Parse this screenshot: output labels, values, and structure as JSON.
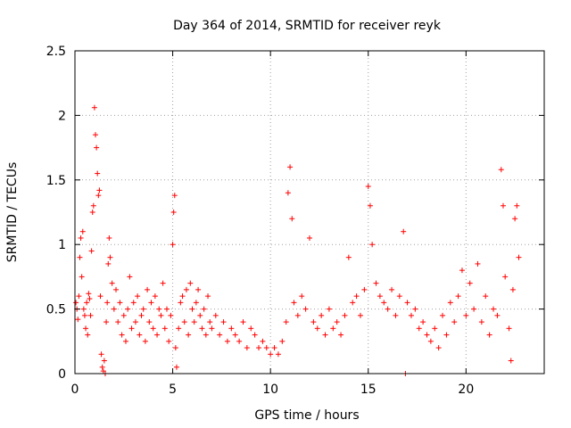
{
  "chart_data": {
    "type": "scatter",
    "title": "Day 364 of 2014, SRMTID for receiver reyk",
    "xlabel": "GPS time / hours",
    "ylabel": "SRMTID / TECUs",
    "xlim": [
      0,
      24
    ],
    "ylim": [
      0,
      2.5
    ],
    "xticks": [
      0,
      5,
      10,
      15,
      20
    ],
    "yticks": [
      0,
      0.5,
      1,
      1.5,
      2,
      2.5
    ],
    "ytick_labels": [
      "0",
      "0.5",
      "1",
      "1.5",
      "2",
      "2.5"
    ],
    "grid": true,
    "marker": "+",
    "color": "#ff0000",
    "series": [
      {
        "name": "SRMTID",
        "points": [
          [
            0.05,
            0.55
          ],
          [
            0.1,
            0.5
          ],
          [
            0.15,
            0.42
          ],
          [
            0.2,
            0.6
          ],
          [
            0.25,
            0.9
          ],
          [
            0.3,
            1.05
          ],
          [
            0.35,
            0.75
          ],
          [
            0.4,
            1.1
          ],
          [
            0.45,
            0.5
          ],
          [
            0.5,
            0.45
          ],
          [
            0.55,
            0.35
          ],
          [
            0.6,
            0.55
          ],
          [
            0.65,
            0.3
          ],
          [
            0.7,
            0.62
          ],
          [
            0.75,
            0.58
          ],
          [
            0.8,
            0.45
          ],
          [
            0.85,
            0.95
          ],
          [
            0.9,
            1.25
          ],
          [
            0.95,
            1.3
          ],
          [
            1.0,
            2.06
          ],
          [
            1.05,
            1.85
          ],
          [
            1.1,
            1.75
          ],
          [
            1.15,
            1.55
          ],
          [
            1.2,
            1.38
          ],
          [
            1.25,
            1.42
          ],
          [
            1.3,
            0.6
          ],
          [
            1.35,
            0.15
          ],
          [
            1.4,
            0.05
          ],
          [
            1.45,
            0.02
          ],
          [
            1.5,
            0.1
          ],
          [
            1.55,
            0.0
          ],
          [
            1.6,
            0.4
          ],
          [
            1.65,
            0.55
          ],
          [
            1.7,
            0.85
          ],
          [
            1.75,
            1.05
          ],
          [
            1.8,
            0.9
          ],
          [
            1.9,
            0.7
          ],
          [
            2.0,
            0.5
          ],
          [
            2.1,
            0.65
          ],
          [
            2.2,
            0.4
          ],
          [
            2.3,
            0.55
          ],
          [
            2.4,
            0.3
          ],
          [
            2.5,
            0.45
          ],
          [
            2.6,
            0.25
          ],
          [
            2.7,
            0.5
          ],
          [
            2.8,
            0.75
          ],
          [
            2.9,
            0.35
          ],
          [
            3.0,
            0.55
          ],
          [
            3.1,
            0.4
          ],
          [
            3.2,
            0.6
          ],
          [
            3.3,
            0.3
          ],
          [
            3.4,
            0.45
          ],
          [
            3.5,
            0.5
          ],
          [
            3.6,
            0.25
          ],
          [
            3.7,
            0.65
          ],
          [
            3.8,
            0.4
          ],
          [
            3.9,
            0.55
          ],
          [
            4.0,
            0.35
          ],
          [
            4.1,
            0.6
          ],
          [
            4.2,
            0.3
          ],
          [
            4.3,
            0.5
          ],
          [
            4.4,
            0.45
          ],
          [
            4.5,
            0.7
          ],
          [
            4.6,
            0.35
          ],
          [
            4.7,
            0.5
          ],
          [
            4.8,
            0.25
          ],
          [
            4.9,
            0.45
          ],
          [
            5.0,
            1.0
          ],
          [
            5.05,
            1.25
          ],
          [
            5.1,
            1.38
          ],
          [
            5.15,
            0.2
          ],
          [
            5.2,
            0.05
          ],
          [
            5.3,
            0.35
          ],
          [
            5.4,
            0.55
          ],
          [
            5.5,
            0.6
          ],
          [
            5.6,
            0.4
          ],
          [
            5.7,
            0.65
          ],
          [
            5.8,
            0.3
          ],
          [
            5.9,
            0.7
          ],
          [
            6.0,
            0.5
          ],
          [
            6.1,
            0.4
          ],
          [
            6.2,
            0.55
          ],
          [
            6.3,
            0.65
          ],
          [
            6.4,
            0.45
          ],
          [
            6.5,
            0.35
          ],
          [
            6.6,
            0.5
          ],
          [
            6.7,
            0.3
          ],
          [
            6.8,
            0.6
          ],
          [
            6.9,
            0.4
          ],
          [
            7.0,
            0.35
          ],
          [
            7.2,
            0.45
          ],
          [
            7.4,
            0.3
          ],
          [
            7.6,
            0.4
          ],
          [
            7.8,
            0.25
          ],
          [
            8.0,
            0.35
          ],
          [
            8.2,
            0.3
          ],
          [
            8.4,
            0.25
          ],
          [
            8.6,
            0.4
          ],
          [
            8.8,
            0.2
          ],
          [
            9.0,
            0.35
          ],
          [
            9.2,
            0.3
          ],
          [
            9.4,
            0.2
          ],
          [
            9.6,
            0.25
          ],
          [
            9.8,
            0.2
          ],
          [
            10.0,
            0.15
          ],
          [
            10.2,
            0.2
          ],
          [
            10.4,
            0.15
          ],
          [
            10.6,
            0.25
          ],
          [
            10.8,
            0.4
          ],
          [
            10.9,
            1.4
          ],
          [
            11.0,
            1.6
          ],
          [
            11.1,
            1.2
          ],
          [
            11.2,
            0.55
          ],
          [
            11.4,
            0.45
          ],
          [
            11.6,
            0.6
          ],
          [
            11.8,
            0.5
          ],
          [
            12.0,
            1.05
          ],
          [
            12.2,
            0.4
          ],
          [
            12.4,
            0.35
          ],
          [
            12.6,
            0.45
          ],
          [
            12.8,
            0.3
          ],
          [
            13.0,
            0.5
          ],
          [
            13.2,
            0.35
          ],
          [
            13.4,
            0.4
          ],
          [
            13.6,
            0.3
          ],
          [
            13.8,
            0.45
          ],
          [
            14.0,
            0.9
          ],
          [
            14.2,
            0.55
          ],
          [
            14.4,
            0.6
          ],
          [
            14.6,
            0.45
          ],
          [
            14.8,
            0.65
          ],
          [
            15.0,
            1.45
          ],
          [
            15.1,
            1.3
          ],
          [
            15.2,
            1.0
          ],
          [
            15.4,
            0.7
          ],
          [
            15.6,
            0.6
          ],
          [
            15.8,
            0.55
          ],
          [
            16.0,
            0.5
          ],
          [
            16.2,
            0.65
          ],
          [
            16.4,
            0.45
          ],
          [
            16.6,
            0.6
          ],
          [
            16.8,
            1.1
          ],
          [
            16.9,
            0.0
          ],
          [
            17.0,
            0.55
          ],
          [
            17.2,
            0.45
          ],
          [
            17.4,
            0.5
          ],
          [
            17.6,
            0.35
          ],
          [
            17.8,
            0.4
          ],
          [
            18.0,
            0.3
          ],
          [
            18.2,
            0.25
          ],
          [
            18.4,
            0.35
          ],
          [
            18.6,
            0.2
          ],
          [
            18.8,
            0.45
          ],
          [
            19.0,
            0.3
          ],
          [
            19.2,
            0.55
          ],
          [
            19.4,
            0.4
          ],
          [
            19.6,
            0.6
          ],
          [
            19.8,
            0.8
          ],
          [
            20.0,
            0.45
          ],
          [
            20.2,
            0.7
          ],
          [
            20.4,
            0.5
          ],
          [
            20.6,
            0.85
          ],
          [
            20.8,
            0.4
          ],
          [
            21.0,
            0.6
          ],
          [
            21.2,
            0.3
          ],
          [
            21.4,
            0.5
          ],
          [
            21.6,
            0.45
          ],
          [
            21.8,
            1.58
          ],
          [
            21.9,
            1.3
          ],
          [
            22.0,
            0.75
          ],
          [
            22.2,
            0.35
          ],
          [
            22.3,
            0.1
          ],
          [
            22.4,
            0.65
          ],
          [
            22.5,
            1.2
          ],
          [
            22.6,
            1.3
          ],
          [
            22.7,
            0.9
          ]
        ]
      }
    ]
  }
}
